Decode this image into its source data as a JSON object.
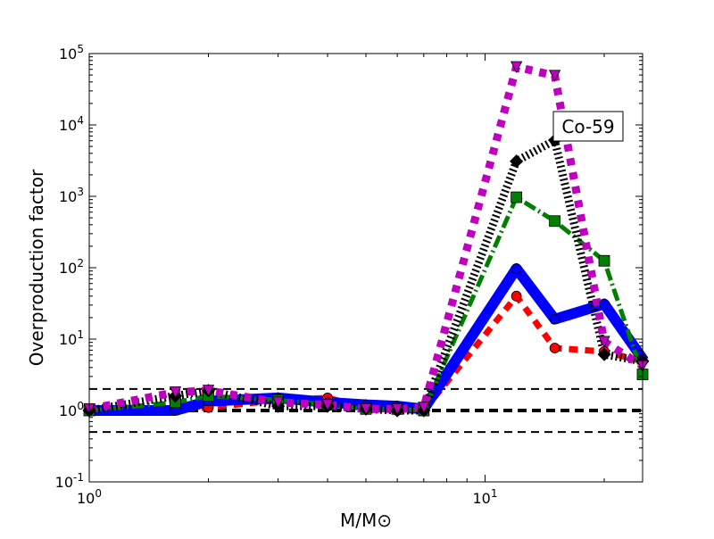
{
  "chart_data": {
    "type": "line",
    "title": "",
    "xlabel": "M/M⊙",
    "ylabel": "Overproduction factor",
    "xscale": "log",
    "yscale": "log",
    "xlim": [
      1,
      25
    ],
    "ylim": [
      0.1,
      100000
    ],
    "x_ticks": [
      {
        "value": 1,
        "label": "10",
        "exp": "0"
      },
      {
        "value": 10,
        "label": "10",
        "exp": "1"
      }
    ],
    "y_ticks": [
      {
        "value": 0.1,
        "label": "10",
        "exp": "-1"
      },
      {
        "value": 1,
        "label": "10",
        "exp": "0"
      },
      {
        "value": 10,
        "label": "10",
        "exp": "1"
      },
      {
        "value": 100,
        "label": "10",
        "exp": "2"
      },
      {
        "value": 1000,
        "label": "10",
        "exp": "3"
      },
      {
        "value": 10000,
        "label": "10",
        "exp": "4"
      },
      {
        "value": 100000,
        "label": "10",
        "exp": "5"
      }
    ],
    "annotation": "Co-59",
    "reference_lines": [
      {
        "y": 2,
        "style": "dashed"
      },
      {
        "y": 1,
        "style": "dashed-thick"
      },
      {
        "y": 0.5,
        "style": "dashed"
      }
    ],
    "x": [
      1,
      1.65,
      2,
      3,
      4,
      5,
      6,
      7,
      12,
      15,
      20,
      25
    ],
    "series": [
      {
        "name": "red-circle",
        "color": "#ff0000",
        "marker": "circle",
        "dash": "10,8",
        "width": 7,
        "values": [
          1.0,
          1.05,
          1.1,
          1.4,
          1.5,
          1.1,
          1.0,
          1.0,
          40,
          7.5,
          6.7,
          4.9
        ]
      },
      {
        "name": "blue-pentagon",
        "color": "#0000ff",
        "marker": "pentagon",
        "dash": "",
        "width": 12,
        "values": [
          1.0,
          1.0,
          1.35,
          1.5,
          1.3,
          1.2,
          1.15,
          1.05,
          97,
          19,
          31,
          5.3
        ]
      },
      {
        "name": "green-square",
        "color": "#008000",
        "marker": "square",
        "dash": "14,4,2,4",
        "width": 5,
        "values": [
          1.0,
          1.3,
          1.6,
          1.4,
          1.2,
          1.05,
          1.05,
          1.0,
          970,
          450,
          125,
          3.2
        ]
      },
      {
        "name": "black-diamond",
        "color": "#000000",
        "marker": "diamond",
        "dash": "2,3",
        "width": 9,
        "values": [
          1.0,
          1.6,
          1.9,
          1.15,
          1.15,
          1.05,
          1.0,
          1.0,
          3100,
          6100,
          6.1,
          4.9
        ]
      },
      {
        "name": "magenta-triangle",
        "color": "#bf00bf",
        "marker": "triangle-down",
        "dash": "8,8",
        "width": 9,
        "values": [
          1.05,
          1.8,
          1.9,
          1.3,
          1.2,
          1.05,
          1.05,
          1.1,
          65000,
          49000,
          9.2,
          4.2
        ]
      }
    ]
  }
}
